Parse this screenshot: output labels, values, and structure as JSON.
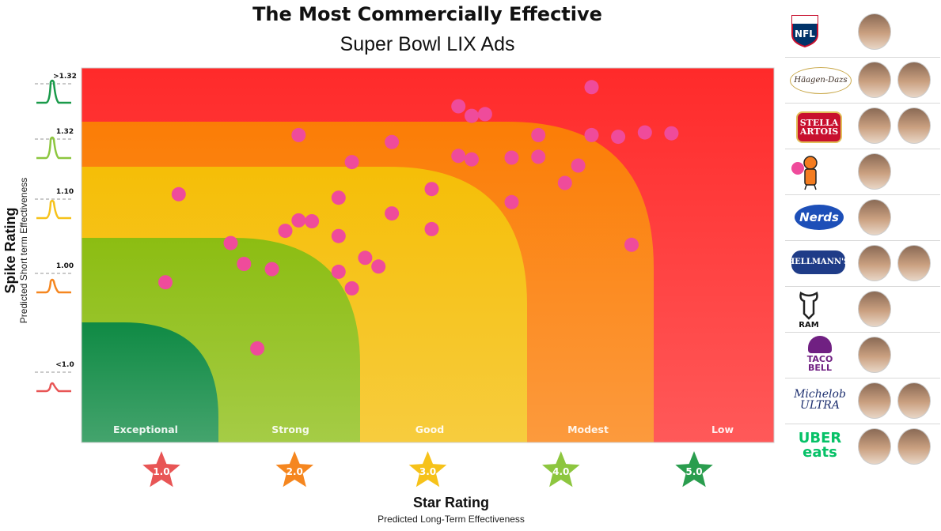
{
  "title": "The Most Commercially Effective",
  "subtitle": "Super Bowl LIX Ads",
  "chart_data": {
    "type": "scatter",
    "xlabel": "Star Rating",
    "xlabel_sub": "Predicted Long-Term Effectiveness",
    "ylabel": "Spike Rating",
    "ylabel_sub": "Predicted Short term Effectiveness",
    "xlim": [
      0.4,
      5.6
    ],
    "ylim": [
      0.0,
      4.3
    ],
    "star_ticks": [
      "1.0",
      "2.0",
      "3.0",
      "4.0",
      "5.0"
    ],
    "star_colors": [
      "#e85555",
      "#f5861f",
      "#f6c21a",
      "#8dc63f",
      "#2a9d4e"
    ],
    "spike_ticks": [
      ">1.32",
      "1.32",
      "1.10",
      "1.00",
      "<1.0"
    ],
    "spike_colors": [
      "#1a9a4a",
      "#8dc63f",
      "#f6c21a",
      "#f5861f",
      "#e85555"
    ],
    "zones": [
      {
        "label": "Low",
        "color": "#ff2a2a"
      },
      {
        "label": "Modest",
        "color": "#fb7d06"
      },
      {
        "label": "Good",
        "color": "#f5be07"
      },
      {
        "label": "Strong",
        "color": "#8cbd12"
      },
      {
        "label": "Exceptional",
        "color": "#0f8a44"
      }
    ],
    "series": [
      {
        "points": [
          {
            "x": 1.03,
            "y": 1.84
          },
          {
            "x": 1.72,
            "y": 1.08
          },
          {
            "x": 1.13,
            "y": 2.85
          },
          {
            "x": 1.52,
            "y": 2.29
          },
          {
            "x": 1.62,
            "y": 2.05
          },
          {
            "x": 1.93,
            "y": 2.43
          },
          {
            "x": 2.03,
            "y": 2.55
          },
          {
            "x": 2.13,
            "y": 2.54
          },
          {
            "x": 2.03,
            "y": 3.53
          },
          {
            "x": 1.83,
            "y": 1.99
          },
          {
            "x": 2.33,
            "y": 2.81
          },
          {
            "x": 2.33,
            "y": 2.37
          },
          {
            "x": 2.33,
            "y": 1.96
          },
          {
            "x": 2.43,
            "y": 1.77
          },
          {
            "x": 2.43,
            "y": 3.22
          },
          {
            "x": 2.53,
            "y": 2.12
          },
          {
            "x": 2.63,
            "y": 2.02
          },
          {
            "x": 2.73,
            "y": 2.63
          },
          {
            "x": 2.73,
            "y": 3.45
          },
          {
            "x": 3.03,
            "y": 2.45
          },
          {
            "x": 3.03,
            "y": 2.91
          },
          {
            "x": 3.23,
            "y": 3.29
          },
          {
            "x": 3.23,
            "y": 3.86
          },
          {
            "x": 3.33,
            "y": 3.25
          },
          {
            "x": 3.33,
            "y": 3.75
          },
          {
            "x": 3.43,
            "y": 3.77
          },
          {
            "x": 3.63,
            "y": 3.27
          },
          {
            "x": 3.63,
            "y": 2.76
          },
          {
            "x": 3.83,
            "y": 3.53
          },
          {
            "x": 3.83,
            "y": 3.28
          },
          {
            "x": 4.03,
            "y": 2.98
          },
          {
            "x": 4.13,
            "y": 3.18
          },
          {
            "x": 4.23,
            "y": 4.08
          },
          {
            "x": 4.23,
            "y": 3.53
          },
          {
            "x": 4.43,
            "y": 3.51
          },
          {
            "x": 4.53,
            "y": 2.27
          },
          {
            "x": 4.63,
            "y": 3.56
          },
          {
            "x": 4.83,
            "y": 3.55
          }
        ]
      }
    ]
  },
  "brands": [
    {
      "name": "NFL",
      "faces": 1
    },
    {
      "name": "Häagen-Dazs",
      "faces": 2
    },
    {
      "name": "STELLA ARTOIS",
      "faces": 2
    },
    {
      "name": "",
      "faces": 1
    },
    {
      "name": "Nerds",
      "faces": 1
    },
    {
      "name": "HELLMANN'S",
      "faces": 2
    },
    {
      "name": "RAM",
      "faces": 1
    },
    {
      "name": "TACO BELL",
      "faces": 1
    },
    {
      "name": "Michelob ULTRA",
      "faces": 2
    },
    {
      "name": "UBER eats",
      "faces": 2
    }
  ]
}
